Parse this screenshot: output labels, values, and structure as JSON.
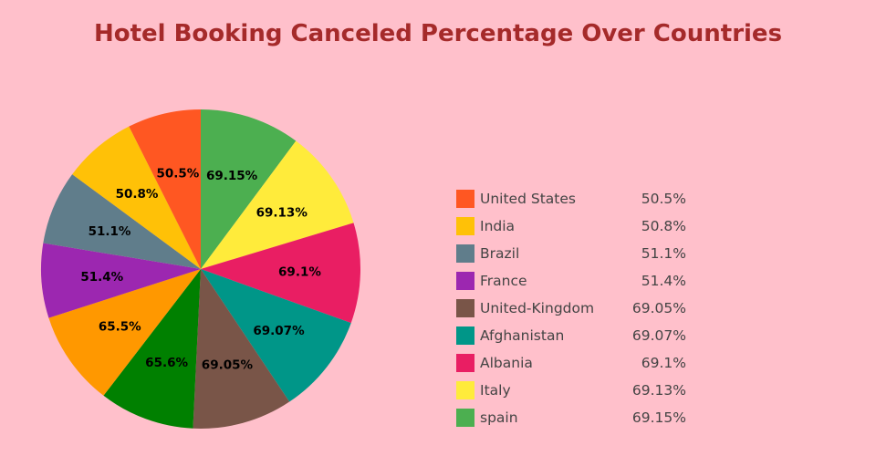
{
  "chart_data": {
    "type": "pie",
    "title": "Hotel Booking Canceled Percentage Over Countries",
    "direction": "clockwise",
    "start": "top",
    "slices": [
      {
        "name": "spain",
        "value": 69.15,
        "label": "69.15%",
        "color": "#4CAF50"
      },
      {
        "name": "Italy",
        "value": 69.13,
        "label": "69.13%",
        "color": "#FFEB3B"
      },
      {
        "name": "Albania",
        "value": 69.1,
        "label": "69.1%",
        "color": "#E91E63"
      },
      {
        "name": "Afghanistan",
        "value": 69.07,
        "label": "69.07%",
        "color": "#009688"
      },
      {
        "name": "United-Kingdom",
        "value": 69.05,
        "label": "69.05%",
        "color": "#795548"
      },
      {
        "name": null,
        "value": 65.6,
        "label": "65.6%",
        "color": "#008000"
      },
      {
        "name": null,
        "value": 65.5,
        "label": "65.5%",
        "color": "#FF9800"
      },
      {
        "name": "France",
        "value": 51.4,
        "label": "51.4%",
        "color": "#9C27B0"
      },
      {
        "name": "Brazil",
        "value": 51.1,
        "label": "51.1%",
        "color": "#607D8B"
      },
      {
        "name": "India",
        "value": 50.8,
        "label": "50.8%",
        "color": "#FFC107"
      },
      {
        "name": "United States",
        "value": 50.5,
        "label": "50.5%",
        "color": "#FF5722"
      }
    ],
    "legend": {
      "position": "right",
      "items": [
        {
          "name": "United States",
          "value": "50.5%",
          "color": "#FF5722"
        },
        {
          "name": "India",
          "value": "50.8%",
          "color": "#FFC107"
        },
        {
          "name": "Brazil",
          "value": "51.1%",
          "color": "#607D8B"
        },
        {
          "name": "France",
          "value": "51.4%",
          "color": "#9C27B0"
        },
        {
          "name": "United-Kingdom",
          "value": "69.05%",
          "color": "#795548"
        },
        {
          "name": "Afghanistan",
          "value": "69.07%",
          "color": "#009688"
        },
        {
          "name": "Albania",
          "value": "69.1%",
          "color": "#E91E63"
        },
        {
          "name": "Italy",
          "value": "69.13%",
          "color": "#FFEB3B"
        },
        {
          "name": "spain",
          "value": "69.15%",
          "color": "#4CAF50"
        }
      ]
    }
  }
}
